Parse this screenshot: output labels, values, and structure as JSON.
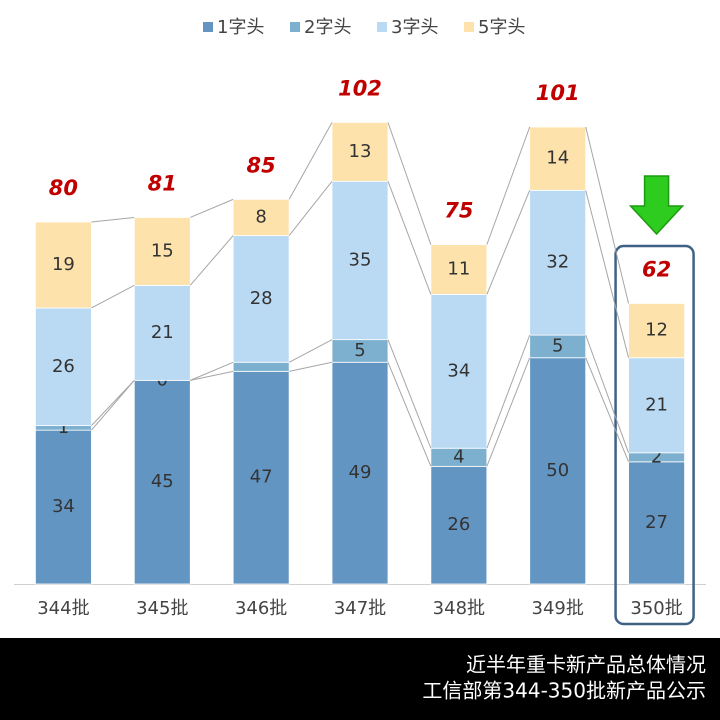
{
  "chart_data": {
    "type": "stacked-bar",
    "categories": [
      "344批",
      "345批",
      "346批",
      "347批",
      "348批",
      "349批",
      "350批"
    ],
    "series": [
      {
        "name": "1字头",
        "color": "#6395c3",
        "values": [
          34,
          45,
          47,
          49,
          26,
          50,
          27
        ]
      },
      {
        "name": "2字头",
        "color": "#7db0cf",
        "values": [
          1,
          0,
          2,
          5,
          4,
          5,
          2
        ],
        "value_labels": [
          "1",
          "0",
          null,
          "5",
          "4",
          "5",
          "2"
        ]
      },
      {
        "name": "3字头",
        "color": "#badaf3",
        "values": [
          26,
          21,
          28,
          35,
          34,
          32,
          21
        ]
      },
      {
        "name": "5字头",
        "color": "#fde3ab",
        "values": [
          19,
          15,
          8,
          13,
          11,
          14,
          12
        ]
      }
    ],
    "totals": [
      80,
      81,
      85,
      102,
      75,
      101,
      62
    ],
    "ylim": [
      0,
      120
    ],
    "highlight_index": 6,
    "footer": [
      "近半年重卡新产品总体情况",
      "工信部第344-350批新产品公示"
    ]
  }
}
